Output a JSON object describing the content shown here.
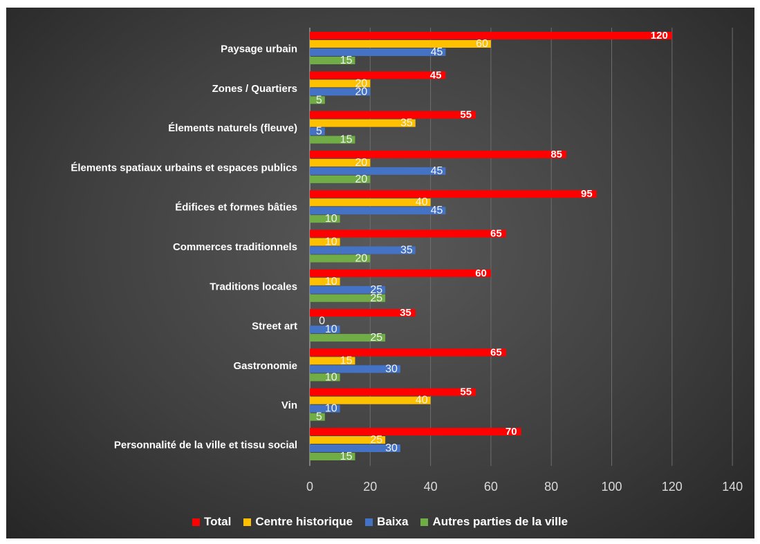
{
  "chart_data": {
    "type": "bar",
    "orientation": "horizontal",
    "categories": [
      "Paysage urbain",
      "Zones / Quartiers",
      "Élements naturels (fleuve)",
      "Élements spatiaux urbains et espaces publics",
      "Édifices et formes bâties",
      "Commerces traditionnels",
      "Traditions locales",
      "Street art",
      "Gastronomie",
      "Vin",
      "Personnalité de la ville et tissu social"
    ],
    "series": [
      {
        "name": "Total",
        "color": "#ff0000",
        "values": [
          120,
          45,
          55,
          85,
          95,
          65,
          60,
          35,
          65,
          55,
          70
        ]
      },
      {
        "name": "Centre historique",
        "color": "#ffc000",
        "values": [
          60,
          20,
          35,
          20,
          40,
          10,
          10,
          0,
          15,
          40,
          25
        ]
      },
      {
        "name": "Baixa",
        "color": "#4472c4",
        "values": [
          45,
          20,
          5,
          45,
          45,
          35,
          25,
          10,
          30,
          10,
          30
        ]
      },
      {
        "name": "Autres parties de la ville",
        "color": "#70ad47",
        "values": [
          15,
          5,
          15,
          20,
          10,
          20,
          25,
          25,
          10,
          5,
          15
        ]
      }
    ],
    "xlim": [
      0,
      140
    ],
    "xticks": [
      "0",
      "20",
      "40",
      "60",
      "80",
      "100",
      "120",
      "140"
    ],
    "grid": true,
    "legend_position": "bottom",
    "title": "",
    "xlabel": "",
    "ylabel": ""
  }
}
